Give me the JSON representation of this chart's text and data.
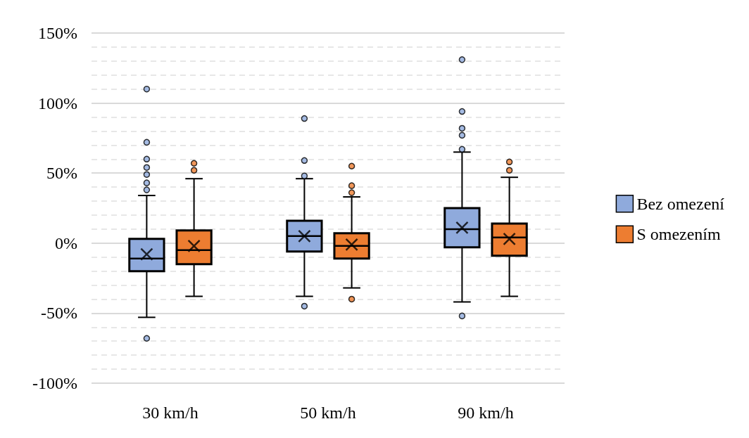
{
  "chart_data": {
    "type": "box",
    "categories": [
      "30 km/h",
      "50 km/h",
      "90 km/h"
    ],
    "series": [
      {
        "name": "Bez omezení",
        "color": "#8faadc",
        "boxes": [
          {
            "low": -53,
            "q1": -20,
            "median": -11,
            "q3": 3,
            "high": 34,
            "mean": -8,
            "outliers": [
              110,
              72,
              60,
              54,
              49,
              43,
              38,
              -68
            ]
          },
          {
            "low": -38,
            "q1": -6,
            "median": 5,
            "q3": 16,
            "high": 46,
            "mean": 5,
            "outliers": [
              89,
              59,
              48,
              -45
            ]
          },
          {
            "low": -42,
            "q1": -3,
            "median": 10,
            "q3": 25,
            "high": 65,
            "mean": 11,
            "outliers": [
              131,
              94,
              82,
              77,
              67,
              -52
            ]
          }
        ]
      },
      {
        "name": "S omezením",
        "color": "#ed7d31",
        "boxes": [
          {
            "low": -38,
            "q1": -15,
            "median": -5,
            "q3": 9,
            "high": 46,
            "mean": -2,
            "outliers": [
              57,
              52
            ]
          },
          {
            "low": -32,
            "q1": -11,
            "median": -2,
            "q3": 7,
            "high": 33,
            "mean": -1,
            "outliers": [
              55,
              41,
              36,
              -40
            ]
          },
          {
            "low": -38,
            "q1": -9,
            "median": 4,
            "q3": 14,
            "high": 47,
            "mean": 3,
            "outliers": [
              58,
              52
            ]
          }
        ]
      }
    ],
    "ylim": [
      -100,
      150
    ],
    "yticks": [
      {
        "value": -100,
        "label": "-100%"
      },
      {
        "value": -90,
        "label": null
      },
      {
        "value": -80,
        "label": null
      },
      {
        "value": -70,
        "label": null
      },
      {
        "value": -60,
        "label": null
      },
      {
        "value": -50,
        "label": "-50%"
      },
      {
        "value": -40,
        "label": null
      },
      {
        "value": -30,
        "label": null
      },
      {
        "value": -20,
        "label": null
      },
      {
        "value": -10,
        "label": null
      },
      {
        "value": 0,
        "label": "0%"
      },
      {
        "value": 10,
        "label": null
      },
      {
        "value": 20,
        "label": null
      },
      {
        "value": 30,
        "label": null
      },
      {
        "value": 40,
        "label": null
      },
      {
        "value": 50,
        "label": "50%"
      },
      {
        "value": 60,
        "label": null
      },
      {
        "value": 70,
        "label": null
      },
      {
        "value": 80,
        "label": null
      },
      {
        "value": 90,
        "label": null
      },
      {
        "value": 100,
        "label": "100%"
      },
      {
        "value": 110,
        "label": null
      },
      {
        "value": 120,
        "label": null
      },
      {
        "value": 130,
        "label": null
      },
      {
        "value": 140,
        "label": null
      },
      {
        "value": 150,
        "label": "150%"
      }
    ],
    "grid": "y",
    "legend": "right",
    "marker": "circle"
  }
}
